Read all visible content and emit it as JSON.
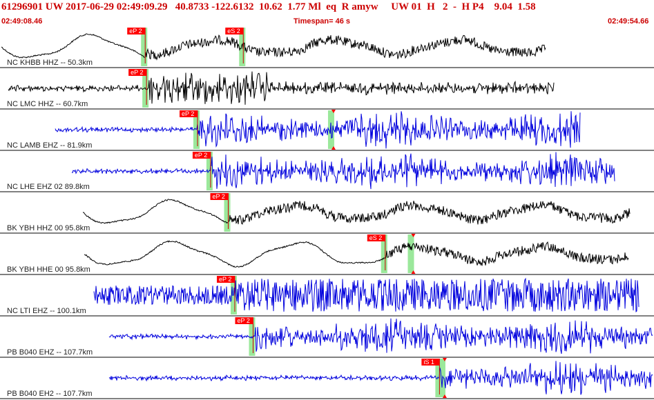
{
  "header": {
    "title": "61296901 UW 2017-06-29 02:49:09.29   40.8733 -122.6132  10.62  1.77 Ml  eq  R amyw     UW 01  H   2  -  H P4    9.04  1.58",
    "start_time": "02:49:08.46",
    "timespan": "Timespan=  46 s",
    "end_time": "02:49:54.66"
  },
  "colors": {
    "header_text": "#cc0000",
    "pick_box": "#ff0000",
    "pick_line": "#cc0000",
    "pick_window": "#9be89b",
    "trace_black": "#000000",
    "trace_blue": "#0000dd",
    "separator": "#000000"
  },
  "traces": [
    {
      "label": "NC KHBB HHZ -- 50.3km",
      "color": "black",
      "style": "lowfreq",
      "picks": [
        {
          "label": "eP 2",
          "t": 0.222
        },
        {
          "label": "eS 2",
          "t": 0.372
        }
      ],
      "ticks": []
    },
    {
      "label": "NC LMC HHZ -- 60.7km",
      "color": "black",
      "style": "burst",
      "picks": [
        {
          "label": "eP 2",
          "t": 0.224
        }
      ],
      "ticks": []
    },
    {
      "label": "NC LAMB EHZ -- 81.9km",
      "color": "blue",
      "style": "noise",
      "picks": [
        {
          "label": "eP 2",
          "t": 0.302
        }
      ],
      "ticks": [
        0.51
      ]
    },
    {
      "label": "NC LHE EHZ 02 89.8km",
      "color": "blue",
      "style": "noise",
      "picks": [
        {
          "label": "eP 2",
          "t": 0.322
        }
      ],
      "ticks": []
    },
    {
      "label": "BK YBH HHZ 00 95.8km",
      "color": "black",
      "style": "lowfreq",
      "picks": [
        {
          "label": "eP 2",
          "t": 0.349
        }
      ],
      "ticks": []
    },
    {
      "label": "BK YBH HHE 00 95.8km",
      "color": "black",
      "style": "lowfreq",
      "picks": [
        {
          "label": "eS 2",
          "t": 0.589
        }
      ],
      "ticks": [
        0.632
      ]
    },
    {
      "label": "NC LTI EHZ -- 100.1km",
      "color": "blue",
      "style": "dense",
      "picks": [
        {
          "label": "eP 2",
          "t": 0.359
        }
      ],
      "ticks": []
    },
    {
      "label": "PB B040 EHZ -- 107.7km",
      "color": "blue",
      "style": "noise",
      "picks": [
        {
          "label": "eP 2",
          "t": 0.387
        }
      ],
      "ticks": []
    },
    {
      "label": "PB B040 EH2 -- 107.7km",
      "color": "blue",
      "style": "noise",
      "picks": [
        {
          "label": "iS 1",
          "t": 0.672
        }
      ],
      "ticks": [
        0.68
      ]
    }
  ]
}
